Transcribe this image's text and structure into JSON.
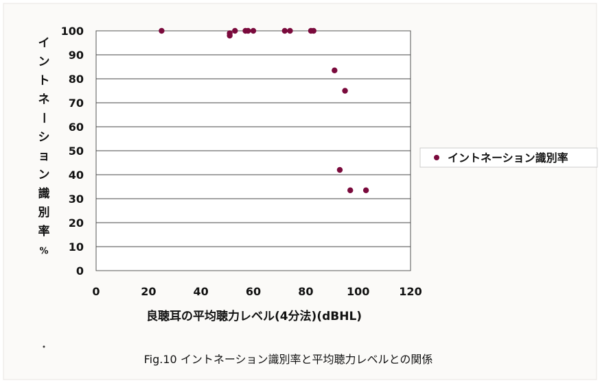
{
  "chart_data": {
    "type": "scatter",
    "ylabel": "イントネーション識別率%",
    "xlabel": "良聴耳の平均聴力レベル(4分法)(dBHL)",
    "caption": "Fig.10  イントネーション識別率と平均聴力レベルとの関係",
    "xlim": [
      0,
      120
    ],
    "ylim": [
      0,
      100
    ],
    "x_ticks": [
      0,
      20,
      40,
      60,
      80,
      100,
      120
    ],
    "y_ticks": [
      0,
      10,
      20,
      30,
      40,
      50,
      60,
      70,
      80,
      90,
      100
    ],
    "grid": "horizontal",
    "legend_position": "right",
    "marker_color": "#7a0a3c",
    "series": [
      {
        "name": "イントネーション識別率",
        "points": [
          {
            "x": 25,
            "y": 100
          },
          {
            "x": 51,
            "y": 99
          },
          {
            "x": 51,
            "y": 98
          },
          {
            "x": 53,
            "y": 100
          },
          {
            "x": 57,
            "y": 100
          },
          {
            "x": 58,
            "y": 100
          },
          {
            "x": 60,
            "y": 100
          },
          {
            "x": 72,
            "y": 100
          },
          {
            "x": 74,
            "y": 100
          },
          {
            "x": 82,
            "y": 100
          },
          {
            "x": 83,
            "y": 100
          },
          {
            "x": 91,
            "y": 83.5
          },
          {
            "x": 95,
            "y": 75
          },
          {
            "x": 93,
            "y": 42
          },
          {
            "x": 97,
            "y": 33.5
          },
          {
            "x": 103,
            "y": 33.5
          }
        ]
      }
    ]
  }
}
